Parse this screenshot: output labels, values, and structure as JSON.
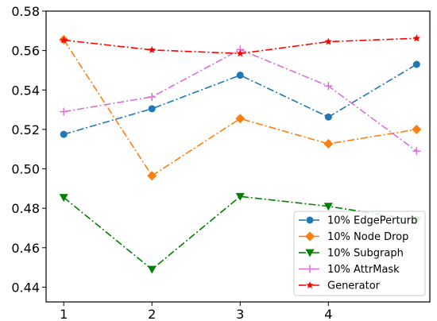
{
  "chart_data": {
    "type": "line",
    "title": "",
    "xlabel": "",
    "ylabel": "",
    "x": [
      1,
      2,
      3,
      4,
      5
    ],
    "xticks": [
      1,
      2,
      3,
      4
    ],
    "xticklabels": [
      "1",
      "2",
      "3",
      "4"
    ],
    "xlim": [
      0.8,
      5.15
    ],
    "ylim": [
      0.4325,
      0.58
    ],
    "yticks": [
      0.44,
      0.46,
      0.48,
      0.5,
      0.52,
      0.54,
      0.56,
      0.58
    ],
    "yticklabels": [
      "0.44",
      "0.46",
      "0.48",
      "0.50",
      "0.52",
      "0.54",
      "0.56",
      "0.58"
    ],
    "grid": false,
    "legend_position": "lower-right",
    "series": [
      {
        "name": "10% EdgePerturb",
        "color": "#1f77b4",
        "marker": "circle",
        "linestyle": "dashdot",
        "values": [
          0.5175,
          0.5305,
          0.5475,
          0.5263,
          0.553
        ]
      },
      {
        "name": "10% Node Drop",
        "color": "#ff7f0e",
        "marker": "diamond",
        "linestyle": "dashdot",
        "values": [
          0.5655,
          0.4965,
          0.5255,
          0.5127,
          0.52
        ]
      },
      {
        "name": "10% Subgraph",
        "color": "#008000",
        "marker": "triangle-down",
        "linestyle": "dashdot",
        "values": [
          0.4855,
          0.449,
          0.486,
          0.481,
          0.474
        ]
      },
      {
        "name": "10% AttrMask",
        "color": "#da70d6",
        "marker": "plus",
        "linestyle": "dashdot",
        "values": [
          0.529,
          0.5365,
          0.5605,
          0.542,
          0.509
        ]
      },
      {
        "name": "Generator",
        "color": "#ff0000",
        "marker": "star",
        "linestyle": "dashdot",
        "values": [
          0.5653,
          0.5603,
          0.5585,
          0.5645,
          0.5662
        ]
      }
    ]
  }
}
